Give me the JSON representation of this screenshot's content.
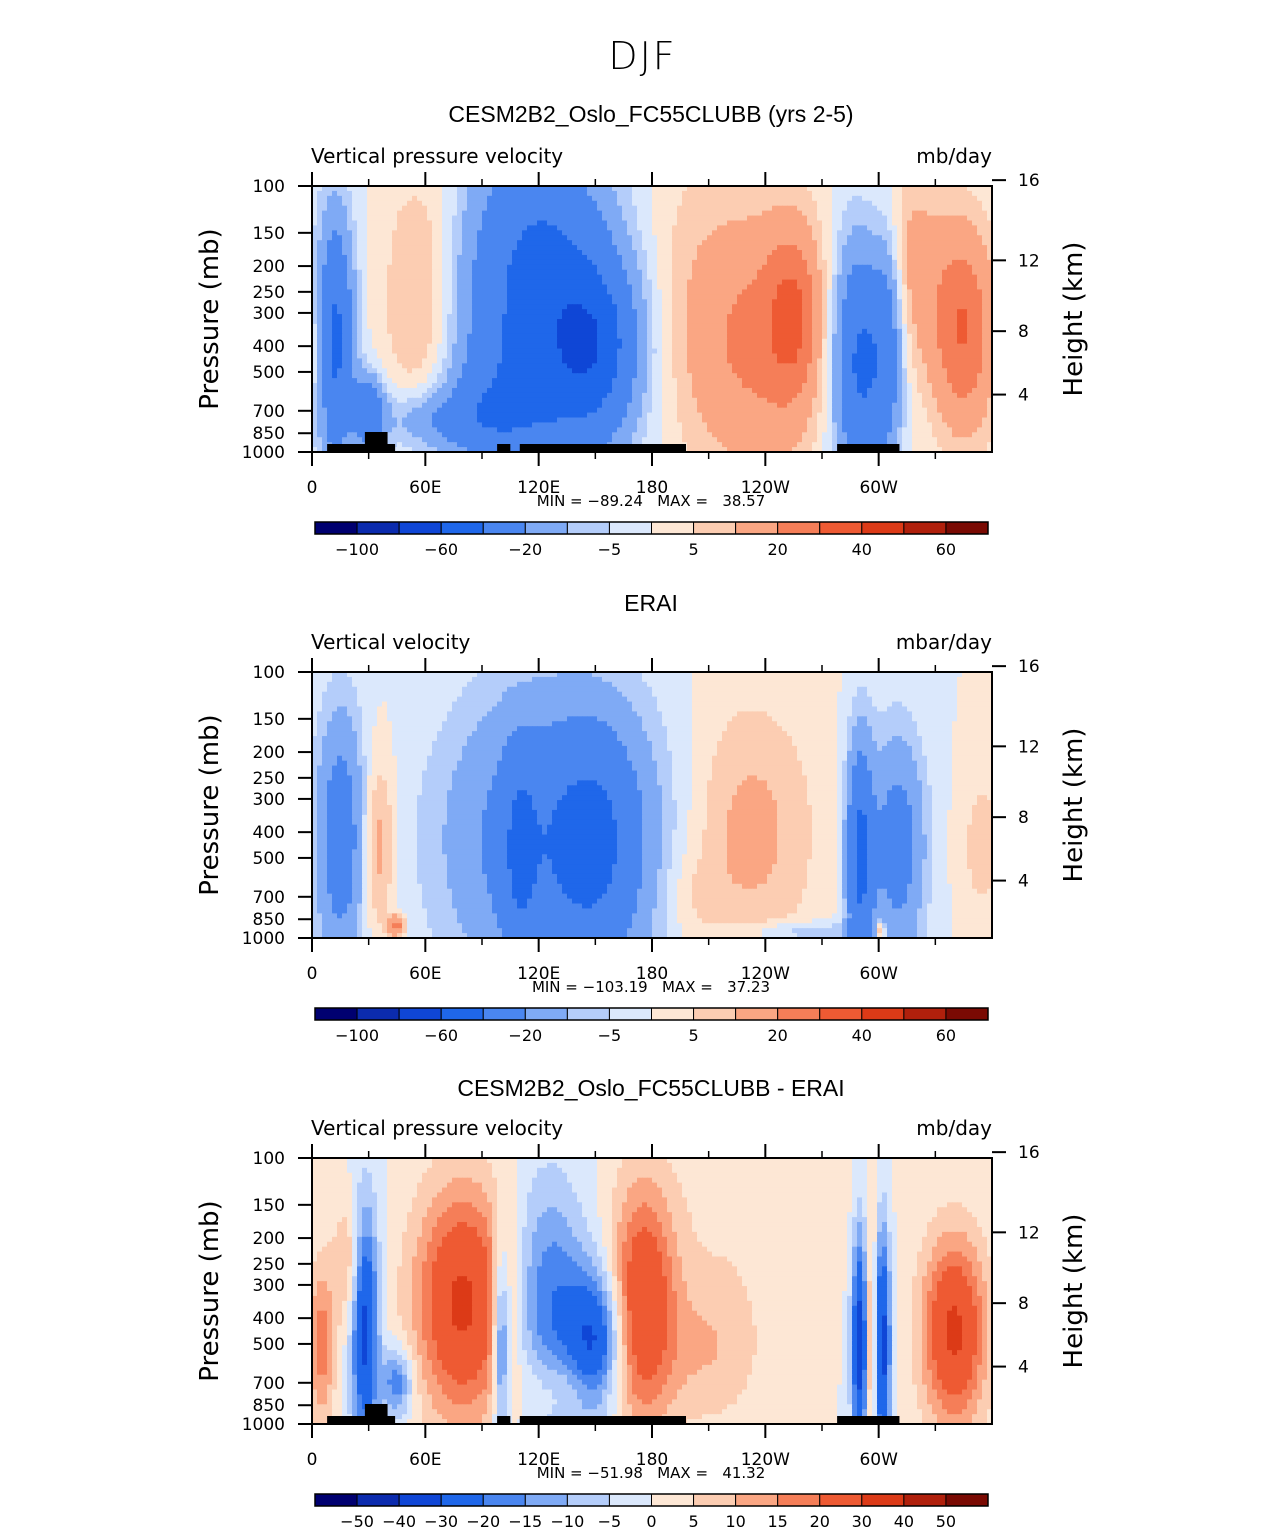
{
  "figure": {
    "title": "DJF"
  },
  "colors": {
    "palette": [
      "#000070",
      "#0b2bae",
      "#0f46d6",
      "#1f67ea",
      "#4a86f0",
      "#7faaf5",
      "#b4cdfa",
      "#dbe8fc",
      "#fde7d5",
      "#fccdb2",
      "#faa683",
      "#f57e58",
      "#ee5a33",
      "#dc3a17",
      "#b0200c",
      "#7a0a03"
    ],
    "land": "#000000"
  },
  "chart_data": [
    {
      "type": "contour",
      "title": "CESM2B2_Oslo_FC55CLUBB (yrs 2-5)",
      "left_label": "Vertical pressure velocity",
      "right_label": "mb/day",
      "ylabel": "Pressure (mb)",
      "ylabel_right": "Height (km)",
      "y_ticks": [
        "100",
        "150",
        "200",
        "250",
        "300",
        "400",
        "500",
        "700",
        "850",
        "1000"
      ],
      "y_right_ticks": [
        "16",
        "12",
        "8",
        "4"
      ],
      "x_ticks": [
        "0",
        "60E",
        "120E",
        "180",
        "120W",
        "60W"
      ],
      "stats": "MIN = −89.24   MAX =   38.57",
      "colorbar_labels": [
        "−100",
        "−60",
        "−20",
        "−5",
        "5",
        "20",
        "40",
        "60"
      ],
      "features": [
        {
          "lon": 12,
          "p": 380,
          "lw": 7,
          "ph": 280,
          "v": -45
        },
        {
          "lon": 30,
          "p": 700,
          "lw": 6,
          "ph": 150,
          "v": -35
        },
        {
          "lon": 4,
          "p": 400,
          "lw": 4,
          "ph": 180,
          "v": 12
        },
        {
          "lon": 58,
          "p": 310,
          "lw": 14,
          "ph": 180,
          "v": 14
        },
        {
          "lon": 66,
          "p": 760,
          "lw": 22,
          "ph": 130,
          "v": -15
        },
        {
          "lon": 120,
          "p": 350,
          "lw": 30,
          "ph": 330,
          "v": -45
        },
        {
          "lon": 150,
          "p": 400,
          "lw": 16,
          "ph": 200,
          "v": -35
        },
        {
          "lon": 95,
          "p": 700,
          "lw": 18,
          "ph": 200,
          "v": -15
        },
        {
          "lon": 195,
          "p": 230,
          "lw": 20,
          "ph": 260,
          "v": 5
        },
        {
          "lon": 235,
          "p": 380,
          "lw": 25,
          "ph": 300,
          "v": 22
        },
        {
          "lon": 255,
          "p": 300,
          "lw": 10,
          "ph": 160,
          "v": 20
        },
        {
          "lon": 290,
          "p": 450,
          "lw": 10,
          "ph": 330,
          "v": -45
        },
        {
          "lon": 305,
          "p": 360,
          "lw": 6,
          "ph": 250,
          "v": -25
        },
        {
          "lon": 315,
          "p": 200,
          "lw": 14,
          "ph": 120,
          "v": 14
        },
        {
          "lon": 345,
          "p": 350,
          "lw": 12,
          "ph": 220,
          "v": 30
        },
        {
          "lon": 120,
          "p": 130,
          "lw": 22,
          "ph": 70,
          "v": -12
        },
        {
          "lon": 60,
          "p": 130,
          "lw": 15,
          "ph": 50,
          "v": 5
        }
      ],
      "land_blocks": [
        [
          8,
          44
        ],
        [
          98,
          105
        ],
        [
          110,
          198
        ],
        [
          278,
          311
        ]
      ],
      "land_bumps": [
        [
          28,
          40
        ]
      ]
    },
    {
      "type": "contour",
      "title": "ERAI",
      "left_label": "Vertical velocity",
      "right_label": "mbar/day",
      "ylabel": "Pressure (mb)",
      "ylabel_right": "Height (km)",
      "y_ticks": [
        "100",
        "150",
        "200",
        "250",
        "300",
        "400",
        "500",
        "700",
        "850",
        "1000"
      ],
      "y_right_ticks": [
        "16",
        "12",
        "8",
        "4"
      ],
      "x_ticks": [
        "0",
        "60E",
        "120E",
        "180",
        "120W",
        "60W"
      ],
      "stats": "MIN = −103.19   MAX =   37.23",
      "colorbar_labels": [
        "−100",
        "−60",
        "−20",
        "−5",
        "5",
        "20",
        "40",
        "60"
      ],
      "features": [
        {
          "lon": 15,
          "p": 420,
          "lw": 9,
          "ph": 320,
          "v": -30
        },
        {
          "lon": 35,
          "p": 450,
          "lw": 6,
          "ph": 250,
          "v": 15
        },
        {
          "lon": 45,
          "p": 900,
          "lw": 3,
          "ph": 60,
          "v": 25
        },
        {
          "lon": 130,
          "p": 430,
          "lw": 38,
          "ph": 380,
          "v": -35
        },
        {
          "lon": 150,
          "p": 450,
          "lw": 15,
          "ph": 300,
          "v": -20
        },
        {
          "lon": 110,
          "p": 500,
          "lw": 6,
          "ph": 300,
          "v": -20
        },
        {
          "lon": 230,
          "p": 400,
          "lw": 25,
          "ph": 320,
          "v": 13
        },
        {
          "lon": 200,
          "p": 700,
          "lw": 12,
          "ph": 200,
          "v": 5
        },
        {
          "lon": 290,
          "p": 500,
          "lw": 5,
          "ph": 350,
          "v": -45
        },
        {
          "lon": 310,
          "p": 450,
          "lw": 10,
          "ph": 300,
          "v": -28
        },
        {
          "lon": 301,
          "p": 940,
          "lw": 2,
          "ph": 50,
          "v": 25
        },
        {
          "lon": 355,
          "p": 450,
          "lw": 8,
          "ph": 200,
          "v": 8
        },
        {
          "lon": 260,
          "p": 950,
          "lw": 25,
          "ph": 60,
          "v": -10
        }
      ],
      "land_blocks": [],
      "land_bumps": []
    },
    {
      "type": "contour",
      "title": "CESM2B2_Oslo_FC55CLUBB - ERAI",
      "left_label": "Vertical pressure velocity",
      "right_label": "mb/day",
      "ylabel": "Pressure (mb)",
      "ylabel_right": "Height (km)",
      "y_ticks": [
        "100",
        "150",
        "200",
        "250",
        "300",
        "400",
        "500",
        "700",
        "850",
        "1000"
      ],
      "y_right_ticks": [
        "16",
        "12",
        "8",
        "4"
      ],
      "x_ticks": [
        "0",
        "60E",
        "120E",
        "180",
        "120W",
        "60W"
      ],
      "stats": "MIN = −51.98   MAX =   41.32",
      "colorbar_labels": [
        "−50",
        "−40",
        "−30",
        "−20",
        "−15",
        "−10",
        "−5",
        "0",
        "5",
        "10",
        "15",
        "20",
        "30",
        "40",
        "50"
      ],
      "features": [
        {
          "lon": 5,
          "p": 500,
          "lw": 5,
          "ph": 250,
          "v": 18
        },
        {
          "lon": 20,
          "p": 250,
          "lw": 6,
          "ph": 100,
          "v": 12
        },
        {
          "lon": 28,
          "p": 420,
          "lw": 5,
          "ph": 300,
          "v": -35
        },
        {
          "lon": 45,
          "p": 700,
          "lw": 6,
          "ph": 150,
          "v": -20
        },
        {
          "lon": 80,
          "p": 350,
          "lw": 18,
          "ph": 250,
          "v": 32
        },
        {
          "lon": 100,
          "p": 500,
          "lw": 3,
          "ph": 300,
          "v": -25
        },
        {
          "lon": 125,
          "p": 350,
          "lw": 14,
          "ph": 260,
          "v": -20
        },
        {
          "lon": 150,
          "p": 500,
          "lw": 10,
          "ph": 220,
          "v": -30
        },
        {
          "lon": 175,
          "p": 350,
          "lw": 12,
          "ph": 250,
          "v": 28
        },
        {
          "lon": 135,
          "p": 720,
          "lw": 20,
          "ph": 150,
          "v": 8
        },
        {
          "lon": 210,
          "p": 520,
          "lw": 20,
          "ph": 250,
          "v": 10
        },
        {
          "lon": 290,
          "p": 500,
          "lw": 3,
          "ph": 350,
          "v": -35
        },
        {
          "lon": 302,
          "p": 500,
          "lw": 3,
          "ph": 350,
          "v": -35
        },
        {
          "lon": 296,
          "p": 500,
          "lw": 2,
          "ph": 350,
          "v": 18
        },
        {
          "lon": 340,
          "p": 450,
          "lw": 12,
          "ph": 260,
          "v": 32
        },
        {
          "lon": 235,
          "p": 150,
          "lw": 40,
          "ph": 80,
          "v": 4
        }
      ],
      "land_blocks": [
        [
          8,
          44
        ],
        [
          98,
          105
        ],
        [
          110,
          198
        ],
        [
          278,
          311
        ]
      ],
      "land_bumps": [
        [
          28,
          40
        ]
      ]
    }
  ]
}
